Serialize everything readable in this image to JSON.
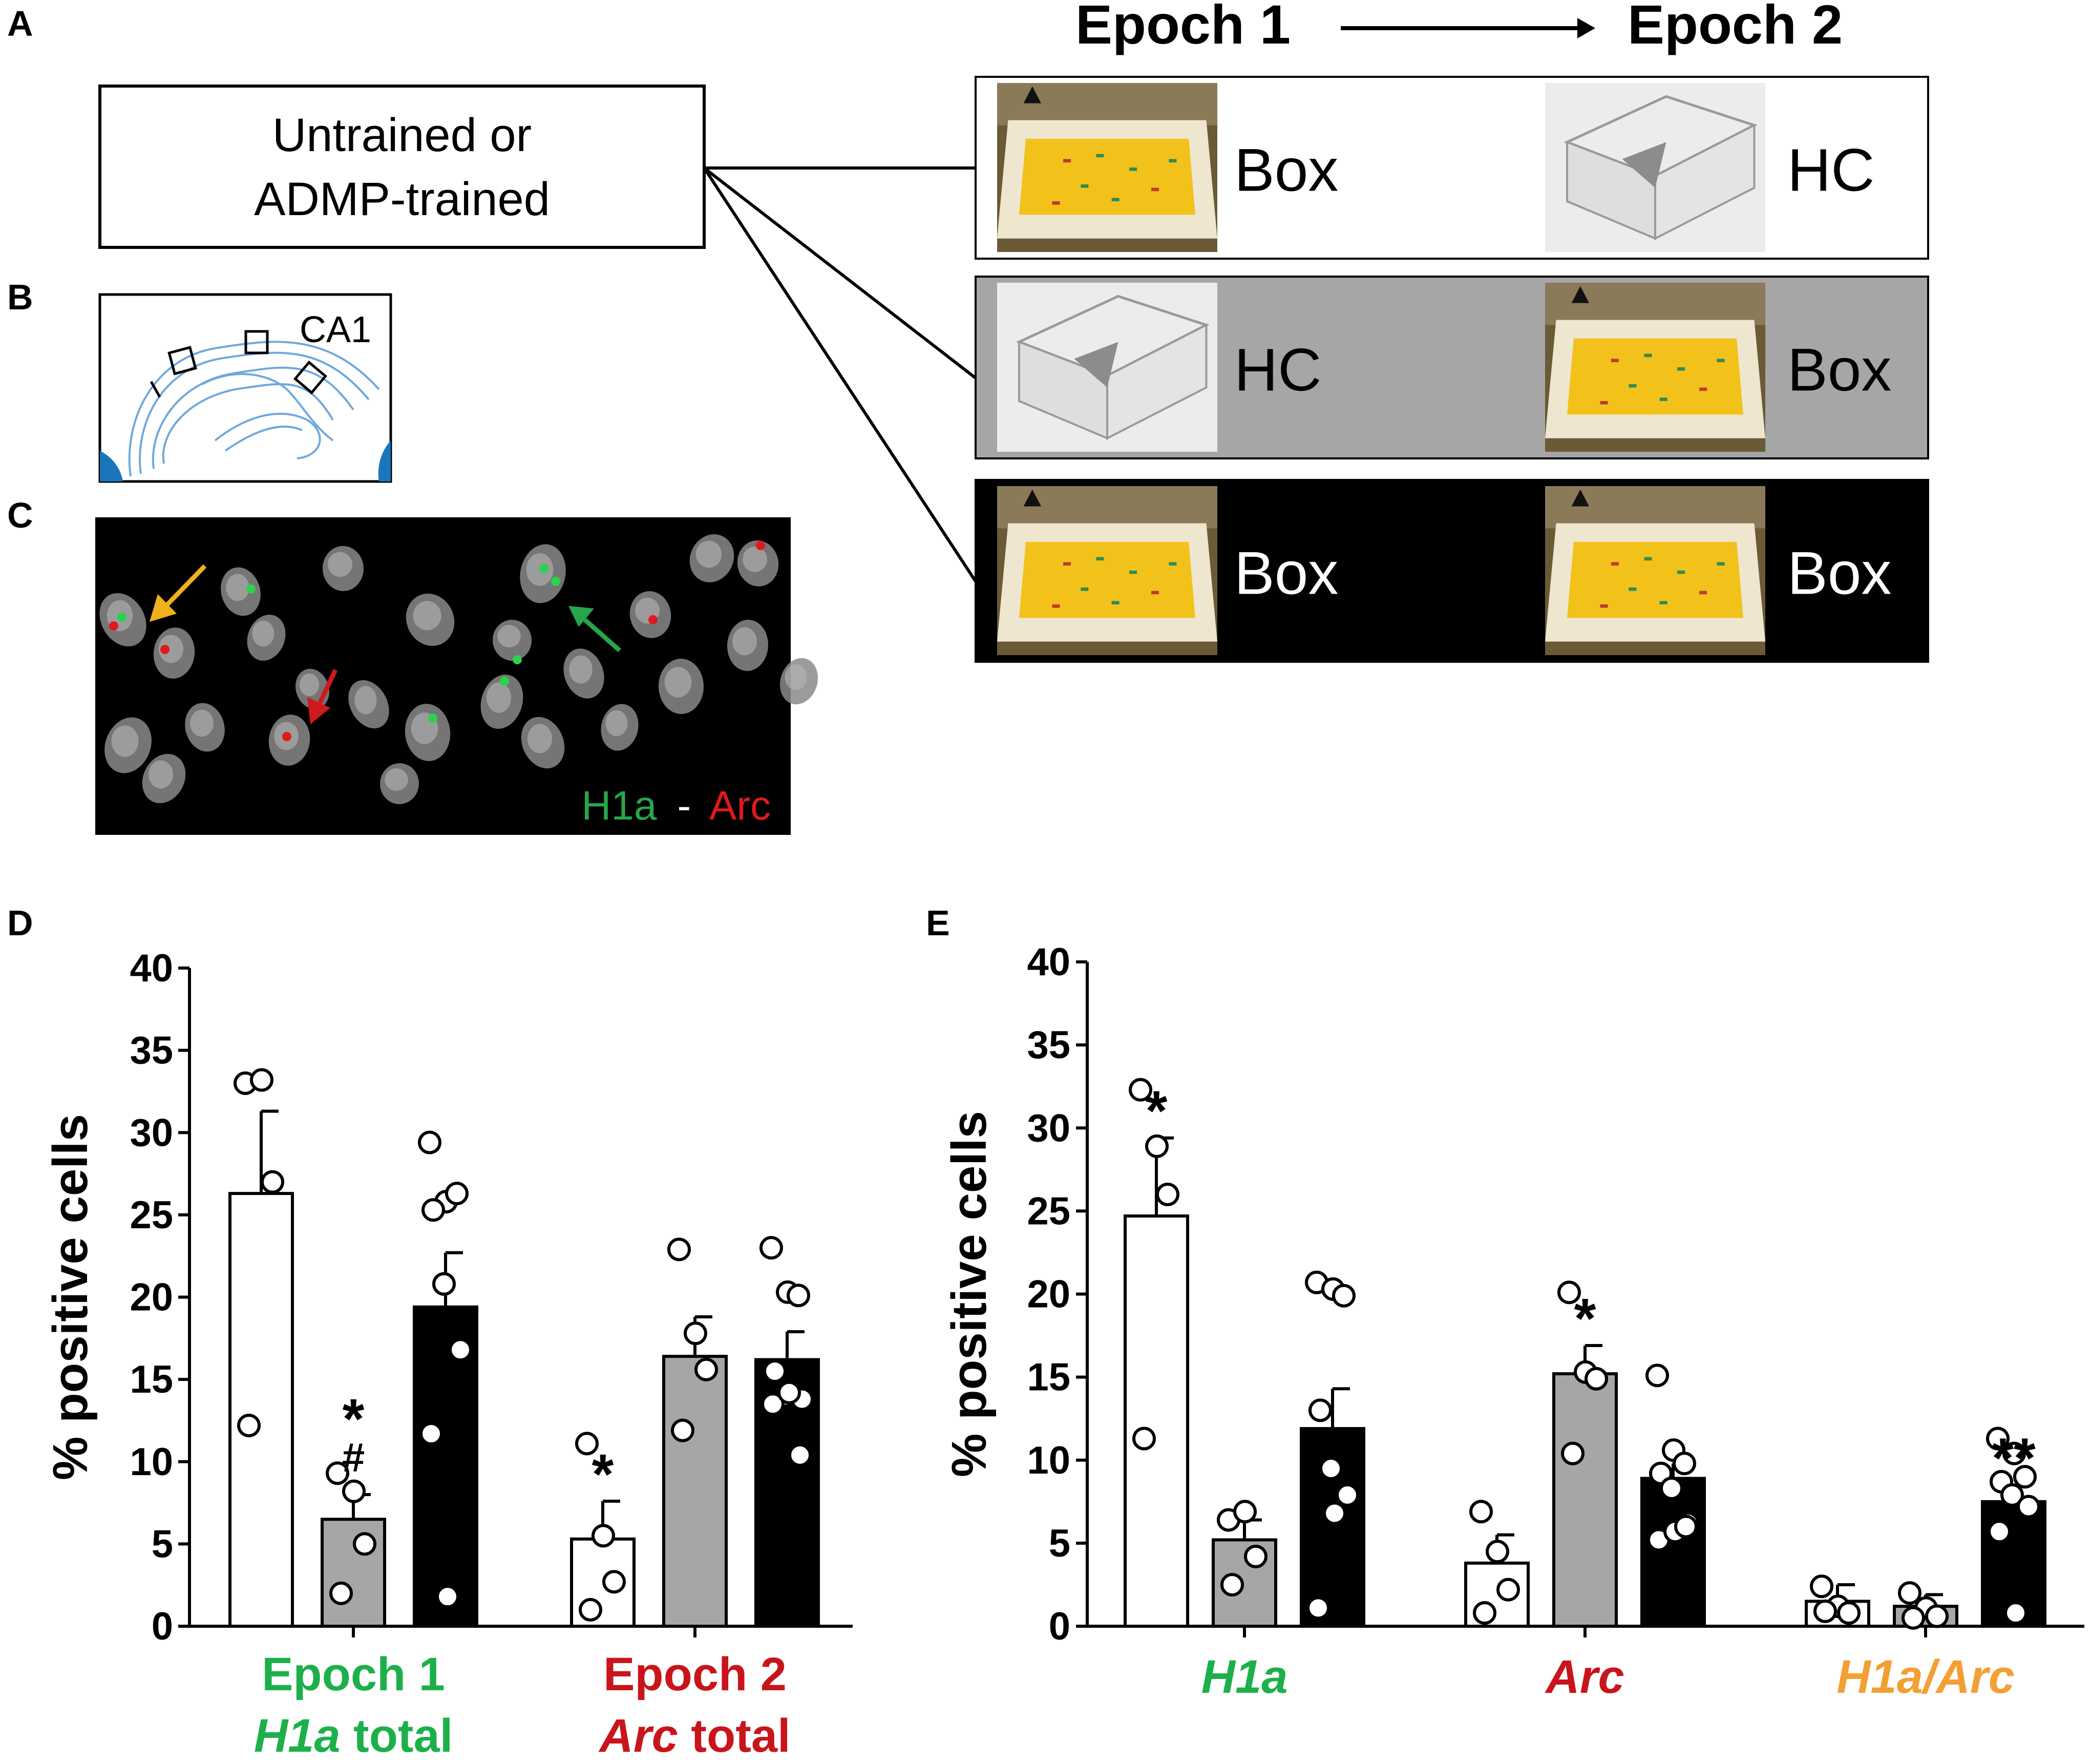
{
  "panels": {
    "a": "A",
    "b": "B",
    "c": "C",
    "d": "D",
    "e": "E"
  },
  "schema": {
    "epoch1": "Epoch 1",
    "epoch2": "Epoch 2",
    "group_box": "Untrained or\nADMP-trained",
    "rows": [
      {
        "e1": "Box",
        "e2": "HC",
        "fill": "#ffffff",
        "text_color": "#000000"
      },
      {
        "e1": "HC",
        "e2": "Box",
        "fill": "#a6a6a6",
        "text_color": "#000000"
      },
      {
        "e1": "Box",
        "e2": "Box",
        "fill": "#000000",
        "text_color": "#ffffff"
      }
    ]
  },
  "hippocampus": {
    "label": "CA1"
  },
  "micrograph": {
    "label_h1a": "H1a",
    "label_sep": "-",
    "label_arc": "Arc"
  },
  "colors": {
    "h1a": "#1db04a",
    "arc": "#c8151b",
    "overlap": "#f2a035",
    "white": "#ffffff",
    "gray": "#a6a6a6",
    "black": "#000000"
  },
  "chart_data": [
    {
      "type": "bar",
      "ylabel": "% positive cells",
      "ylim": [
        0,
        40
      ],
      "yticks": [
        0,
        5,
        10,
        15,
        20,
        25,
        30,
        35,
        40
      ],
      "groups": [
        {
          "label_lines": [
            "Epoch 1",
            "H1a total"
          ],
          "label_color": "#1db04a",
          "bars": [
            {
              "fill": "white",
              "value": 26.3,
              "sem": 5.0,
              "points": [
                33.0,
                33.2,
                27.0,
                12.2
              ],
              "annotation": ""
            },
            {
              "fill": "gray",
              "value": 6.5,
              "sem": 1.5,
              "points": [
                9.3,
                8.2,
                5.0,
                2.0
              ],
              "annotation": "*\n#"
            },
            {
              "fill": "black",
              "value": 19.4,
              "sem": 3.3,
              "points": [
                29.4,
                25.8,
                26.3,
                25.3,
                20.8,
                16.8,
                11.7,
                1.8
              ],
              "annotation": ""
            }
          ]
        },
        {
          "label_lines": [
            "Epoch 2",
            "Arc total"
          ],
          "label_color": "#c8151b",
          "bars": [
            {
              "fill": "white",
              "value": 5.3,
              "sem": 2.3,
              "points": [
                11.1,
                5.5,
                2.7,
                1.0
              ],
              "annotation": "*"
            },
            {
              "fill": "gray",
              "value": 16.4,
              "sem": 2.4,
              "points": [
                22.9,
                17.8,
                15.6,
                11.9
              ],
              "annotation": ""
            },
            {
              "fill": "black",
              "value": 16.2,
              "sem": 1.7,
              "points": [
                23.0,
                20.3,
                20.1,
                15.5,
                14.0,
                13.8,
                13.5,
                14.2,
                10.4
              ],
              "annotation": ""
            }
          ]
        }
      ]
    },
    {
      "type": "bar",
      "ylabel": "% positive cells",
      "ylim": [
        0,
        40
      ],
      "yticks": [
        0,
        5,
        10,
        15,
        20,
        25,
        30,
        35,
        40
      ],
      "groups": [
        {
          "label_lines": [
            "H1a"
          ],
          "label_color": "#1db04a",
          "bars": [
            {
              "fill": "white",
              "value": 24.7,
              "sem": 4.7,
              "points": [
                32.3,
                28.9,
                26.0,
                11.3
              ],
              "annotation": "*"
            },
            {
              "fill": "gray",
              "value": 5.2,
              "sem": 1.2,
              "points": [
                6.4,
                6.9,
                4.2,
                2.5
              ],
              "annotation": ""
            },
            {
              "fill": "black",
              "value": 11.9,
              "sem": 2.4,
              "points": [
                20.7,
                20.3,
                19.9,
                13.0,
                9.5,
                7.9,
                1.1,
                6.8
              ],
              "annotation": ""
            }
          ]
        },
        {
          "label_lines": [
            "Arc"
          ],
          "label_color": "#c8151b",
          "bars": [
            {
              "fill": "white",
              "value": 3.8,
              "sem": 1.7,
              "points": [
                6.9,
                4.5,
                2.2,
                0.8
              ],
              "annotation": ""
            },
            {
              "fill": "gray",
              "value": 15.2,
              "sem": 1.7,
              "points": [
                20.1,
                15.3,
                14.9,
                10.4
              ],
              "annotation": "*"
            },
            {
              "fill": "black",
              "value": 8.9,
              "sem": 0.9,
              "points": [
                15.1,
                10.6,
                9.8,
                9.2,
                8.3,
                6.2,
                5.2,
                5.7,
                6.0
              ],
              "annotation": ""
            }
          ]
        },
        {
          "label_lines": [
            "H1a/Arc"
          ],
          "label_color": "#f2a035",
          "bars": [
            {
              "fill": "white",
              "value": 1.5,
              "sem": 1.0,
              "points": [
                2.4,
                1.2,
                0.8,
                0.9
              ],
              "annotation": ""
            },
            {
              "fill": "gray",
              "value": 1.2,
              "sem": 0.7,
              "points": [
                2.0,
                1.1,
                0.6,
                0.5
              ],
              "annotation": ""
            },
            {
              "fill": "black",
              "value": 7.5,
              "sem": 1.0,
              "points": [
                11.3,
                10.4,
                9.0,
                8.7,
                7.9,
                7.2,
                5.7,
                0.8
              ],
              "annotation": "**"
            }
          ]
        }
      ]
    }
  ]
}
